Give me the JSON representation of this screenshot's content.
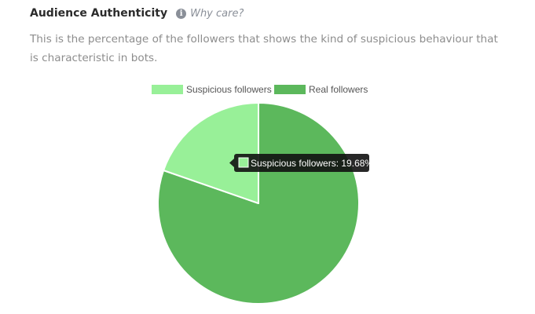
{
  "section": {
    "title": "Audience Authenticity",
    "info_icon": "info-icon",
    "why_care_label": "Why care?",
    "description": "This is the percentage of the followers that shows the kind of suspicious behaviour that is characteristic in bots."
  },
  "chart_data": {
    "type": "pie",
    "title": "",
    "legend_position": "top-center",
    "series": [
      {
        "name": "Suspicious followers",
        "value": 19.68,
        "color": "#98f098"
      },
      {
        "name": "Real followers",
        "value": 80.32,
        "color": "#5cb85c"
      }
    ],
    "tooltip": {
      "series": "Suspicious followers",
      "text": "Suspicious followers: 19.68%"
    }
  }
}
